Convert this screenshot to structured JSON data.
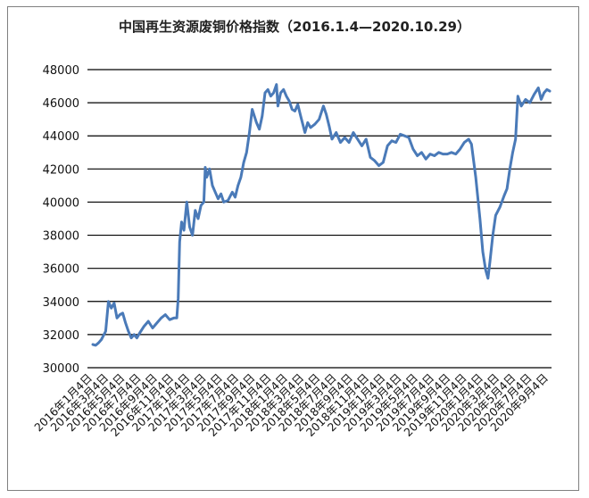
{
  "chart_data": {
    "type": "line",
    "title": "中国再生资源废铜价格指数（2016.1.4—2020.10.29）",
    "xlabel": "",
    "ylabel": "",
    "ylim": [
      30000,
      48000
    ],
    "yticks": [
      30000,
      32000,
      34000,
      36000,
      38000,
      40000,
      42000,
      44000,
      46000,
      48000
    ],
    "grid": "horizontal",
    "legend": "none",
    "line_color": "#4a7ab8",
    "x_tick_labels": [
      "2016年1月4日",
      "2016年3月4日",
      "2016年5月4日",
      "2016年7月4日",
      "2016年9月4日",
      "2016年11月4日",
      "2017年1月4日",
      "2017年3月4日",
      "2017年5月4日",
      "2017年7月4日",
      "2017年9月4日",
      "2017年11月4日",
      "2018年1月4日",
      "2018年3月4日",
      "2018年5月4日",
      "2018年7月4日",
      "2018年9月4日",
      "2018年11月4日",
      "2019年1月4日",
      "2019年3月4日",
      "2019年5月4日",
      "2019年7月4日",
      "2019年9月4日",
      "2019年11月4日",
      "2020年1月4日",
      "2020年3月4日",
      "2020年5月4日",
      "2020年7月4日",
      "2020年9月4日"
    ],
    "series": [
      {
        "values": [
          [
            0,
            31400
          ],
          [
            0.1,
            31350
          ],
          [
            0.2,
            31500
          ],
          [
            0.3,
            31700
          ],
          [
            0.45,
            32200
          ],
          [
            0.55,
            34000
          ],
          [
            0.65,
            33600
          ],
          [
            0.75,
            33900
          ],
          [
            0.85,
            33000
          ],
          [
            0.95,
            33200
          ],
          [
            1.05,
            33300
          ],
          [
            1.15,
            32700
          ],
          [
            1.25,
            32200
          ],
          [
            1.35,
            31800
          ],
          [
            1.45,
            32000
          ],
          [
            1.55,
            31800
          ],
          [
            1.65,
            32100
          ],
          [
            1.8,
            32500
          ],
          [
            1.95,
            32800
          ],
          [
            2.1,
            32400
          ],
          [
            2.25,
            32700
          ],
          [
            2.4,
            33000
          ],
          [
            2.55,
            33200
          ],
          [
            2.7,
            32900
          ],
          [
            2.85,
            33000
          ],
          [
            2.95,
            33000
          ],
          [
            3.0,
            34200
          ],
          [
            3.05,
            37600
          ],
          [
            3.12,
            38800
          ],
          [
            3.2,
            38300
          ],
          [
            3.3,
            40000
          ],
          [
            3.4,
            38500
          ],
          [
            3.5,
            38000
          ],
          [
            3.6,
            39500
          ],
          [
            3.7,
            39000
          ],
          [
            3.8,
            39800
          ],
          [
            3.9,
            40000
          ],
          [
            3.95,
            42100
          ],
          [
            4.0,
            41500
          ],
          [
            4.1,
            42000
          ],
          [
            4.2,
            41000
          ],
          [
            4.3,
            40600
          ],
          [
            4.4,
            40200
          ],
          [
            4.5,
            40500
          ],
          [
            4.6,
            40000
          ],
          [
            4.75,
            40100
          ],
          [
            4.9,
            40600
          ],
          [
            5.0,
            40300
          ],
          [
            5.1,
            41000
          ],
          [
            5.2,
            41500
          ],
          [
            5.3,
            42400
          ],
          [
            5.4,
            43000
          ],
          [
            5.5,
            44200
          ],
          [
            5.6,
            45600
          ],
          [
            5.75,
            44800
          ],
          [
            5.85,
            44400
          ],
          [
            5.95,
            45200
          ],
          [
            6.05,
            46600
          ],
          [
            6.15,
            46800
          ],
          [
            6.25,
            46400
          ],
          [
            6.35,
            46600
          ],
          [
            6.45,
            47100
          ],
          [
            6.5,
            45800
          ],
          [
            6.6,
            46600
          ],
          [
            6.7,
            46800
          ],
          [
            6.8,
            46400
          ],
          [
            6.9,
            46100
          ],
          [
            7.0,
            45600
          ],
          [
            7.1,
            45500
          ],
          [
            7.2,
            45900
          ],
          [
            7.3,
            45200
          ],
          [
            7.45,
            44200
          ],
          [
            7.55,
            44800
          ],
          [
            7.65,
            44500
          ],
          [
            7.8,
            44700
          ],
          [
            7.95,
            45000
          ],
          [
            8.1,
            45800
          ],
          [
            8.2,
            45300
          ],
          [
            8.3,
            44600
          ],
          [
            8.4,
            43800
          ],
          [
            8.55,
            44200
          ],
          [
            8.7,
            43600
          ],
          [
            8.85,
            43900
          ],
          [
            9.0,
            43600
          ],
          [
            9.15,
            44200
          ],
          [
            9.3,
            43800
          ],
          [
            9.45,
            43400
          ],
          [
            9.6,
            43800
          ],
          [
            9.75,
            42700
          ],
          [
            9.9,
            42500
          ],
          [
            10.05,
            42200
          ],
          [
            10.2,
            42400
          ],
          [
            10.35,
            43400
          ],
          [
            10.5,
            43700
          ],
          [
            10.65,
            43600
          ],
          [
            10.8,
            44100
          ],
          [
            10.95,
            44000
          ],
          [
            11.1,
            43900
          ],
          [
            11.25,
            43200
          ],
          [
            11.4,
            42800
          ],
          [
            11.55,
            43000
          ],
          [
            11.7,
            42600
          ],
          [
            11.85,
            42900
          ],
          [
            12.0,
            42800
          ],
          [
            12.15,
            43000
          ],
          [
            12.3,
            42900
          ],
          [
            12.45,
            42900
          ],
          [
            12.6,
            43000
          ],
          [
            12.75,
            42900
          ],
          [
            12.9,
            43200
          ],
          [
            13.05,
            43600
          ],
          [
            13.2,
            43800
          ],
          [
            13.3,
            43500
          ],
          [
            13.45,
            41500
          ],
          [
            13.6,
            39000
          ],
          [
            13.7,
            37000
          ],
          [
            13.8,
            35900
          ],
          [
            13.88,
            35400
          ],
          [
            13.95,
            36400
          ],
          [
            14.05,
            38000
          ],
          [
            14.15,
            39200
          ],
          [
            14.3,
            39700
          ],
          [
            14.45,
            40400
          ],
          [
            14.55,
            40800
          ],
          [
            14.65,
            42000
          ],
          [
            14.75,
            43000
          ],
          [
            14.85,
            43800
          ],
          [
            14.93,
            46400
          ],
          [
            15.05,
            45800
          ],
          [
            15.2,
            46200
          ],
          [
            15.35,
            46000
          ],
          [
            15.5,
            46500
          ],
          [
            15.65,
            46900
          ],
          [
            15.75,
            46200
          ],
          [
            15.85,
            46600
          ],
          [
            15.95,
            46800
          ],
          [
            16.05,
            46700
          ]
        ]
      }
    ]
  }
}
